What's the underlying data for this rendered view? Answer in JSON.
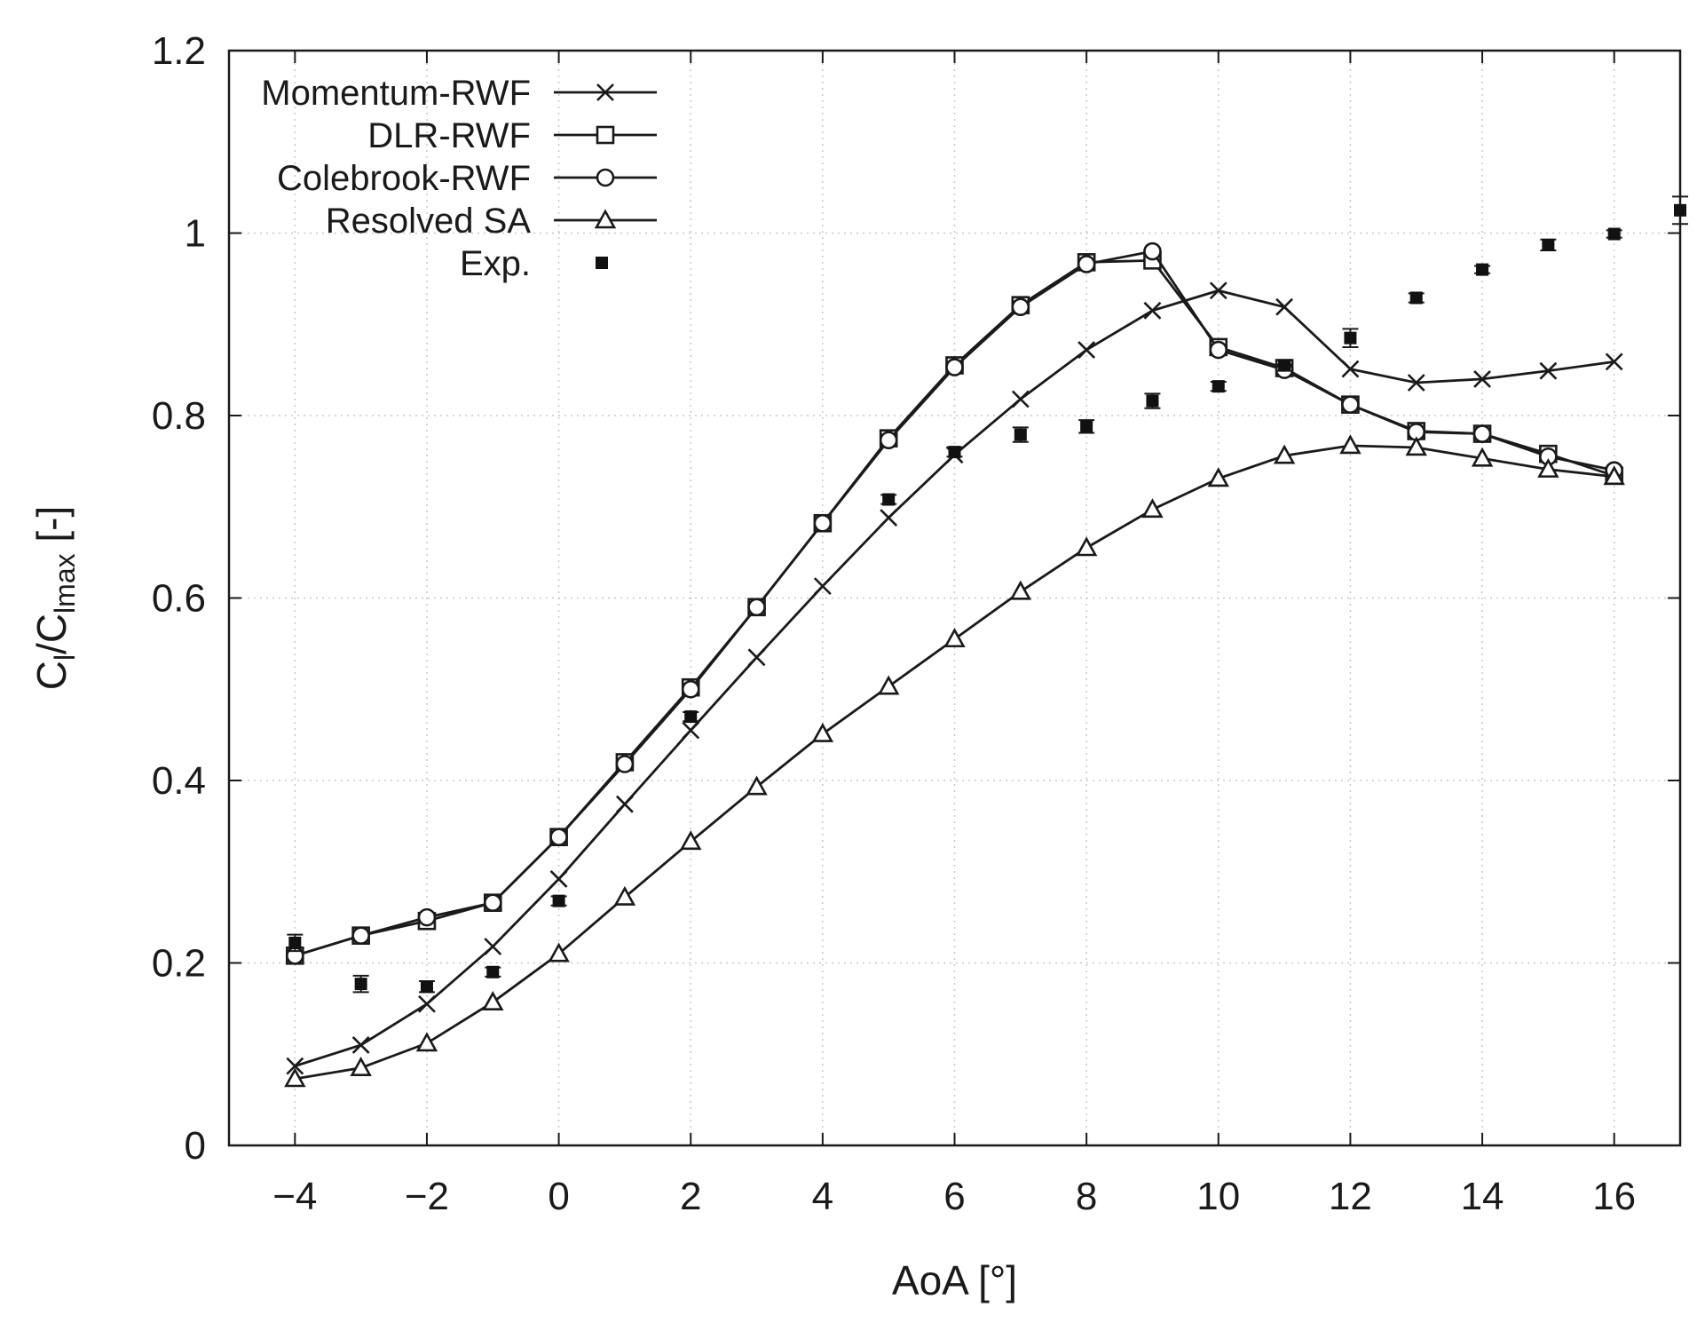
{
  "chart_data": {
    "type": "line",
    "title": "",
    "xlabel": "AoA [°]",
    "ylabel_parts": {
      "c1": "C",
      "s1": "l",
      "slash": "/C",
      "s2": "lmax",
      "unit": " [-]"
    },
    "xlim": [
      -5,
      17
    ],
    "ylim": [
      0,
      1.2
    ],
    "grid": true,
    "legend_position": "top-left",
    "x_ticks": [
      -4,
      -2,
      0,
      2,
      4,
      6,
      8,
      10,
      12,
      14,
      16
    ],
    "x_tick_labels": [
      "−4",
      "−2",
      "0",
      "2",
      "4",
      "6",
      "8",
      "10",
      "12",
      "14",
      "16"
    ],
    "y_ticks": [
      0,
      0.2,
      0.4,
      0.6,
      0.8,
      1.0,
      1.2
    ],
    "y_tick_labels": [
      "0",
      "0.2",
      "0.4",
      "0.6",
      "0.8",
      "1",
      "1.2"
    ],
    "series": [
      {
        "name": "Momentum-RWF",
        "marker": "x",
        "x": [
          -4,
          -3,
          -2,
          -1,
          0,
          1,
          2,
          3,
          4,
          5,
          6,
          7,
          8,
          9,
          10,
          11,
          12,
          13,
          14,
          15,
          16
        ],
        "y": [
          0.087,
          0.11,
          0.155,
          0.218,
          0.292,
          0.374,
          0.455,
          0.535,
          0.613,
          0.688,
          0.757,
          0.818,
          0.872,
          0.915,
          0.937,
          0.919,
          0.851,
          0.836,
          0.84,
          0.849,
          0.859
        ]
      },
      {
        "name": "DLR-RWF",
        "marker": "square",
        "x": [
          -4,
          -3,
          -2,
          -1,
          0,
          1,
          2,
          3,
          4,
          5,
          6,
          7,
          8,
          9,
          10,
          11,
          12,
          13,
          14,
          15,
          16
        ],
        "y": [
          0.208,
          0.23,
          0.246,
          0.266,
          0.338,
          0.42,
          0.502,
          0.59,
          0.682,
          0.775,
          0.855,
          0.921,
          0.968,
          0.97,
          0.875,
          0.852,
          0.812,
          0.783,
          0.78,
          0.758,
          0.734
        ]
      },
      {
        "name": "Colebrook-RWF",
        "marker": "circle",
        "x": [
          -4,
          -3,
          -2,
          -1,
          0,
          1,
          2,
          3,
          4,
          5,
          6,
          7,
          8,
          9,
          10,
          11,
          12,
          13,
          14,
          15,
          16
        ],
        "y": [
          0.208,
          0.23,
          0.25,
          0.266,
          0.338,
          0.418,
          0.5,
          0.59,
          0.682,
          0.773,
          0.853,
          0.919,
          0.966,
          0.98,
          0.872,
          0.85,
          0.812,
          0.782,
          0.78,
          0.755,
          0.74
        ]
      },
      {
        "name": "Resolved SA",
        "marker": "triangle",
        "x": [
          -4,
          -3,
          -2,
          -1,
          0,
          1,
          2,
          3,
          4,
          5,
          6,
          7,
          8,
          9,
          10,
          11,
          12,
          13,
          14,
          15,
          16
        ],
        "y": [
          0.073,
          0.085,
          0.112,
          0.157,
          0.21,
          0.272,
          0.333,
          0.393,
          0.451,
          0.503,
          0.555,
          0.607,
          0.655,
          0.697,
          0.731,
          0.756,
          0.767,
          0.765,
          0.753,
          0.741,
          0.733
        ]
      },
      {
        "name": "Exp.",
        "marker": "filled-square-errorbar",
        "x": [
          -4,
          -3,
          -2,
          -1,
          0,
          2,
          5,
          6,
          7,
          8,
          9,
          10,
          11,
          12,
          13,
          14,
          15,
          16,
          17
        ],
        "y": [
          0.222,
          0.177,
          0.174,
          0.19,
          0.268,
          0.47,
          0.708,
          0.76,
          0.779,
          0.788,
          0.816,
          0.832,
          0.855,
          0.885,
          0.929,
          0.96,
          0.987,
          0.999,
          1.025
        ],
        "err": [
          0.009,
          0.009,
          0.006,
          0.005,
          0.005,
          0.005,
          0.005,
          0.005,
          0.008,
          0.007,
          0.008,
          0.005,
          0.006,
          0.01,
          0.005,
          0.004,
          0.006,
          0.004,
          0.015
        ]
      }
    ]
  }
}
